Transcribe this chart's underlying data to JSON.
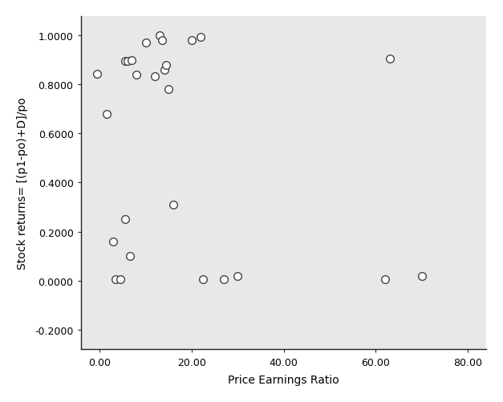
{
  "x": [
    -0.5,
    1.5,
    3.0,
    3.5,
    4.5,
    5.5,
    5.5,
    6.0,
    6.5,
    7.0,
    8.0,
    10.0,
    12.0,
    13.0,
    13.5,
    14.0,
    14.5,
    15.0,
    16.0,
    20.0,
    22.0,
    22.5,
    27.0,
    30.0,
    62.0,
    63.0,
    70.0
  ],
  "y": [
    0.845,
    0.68,
    0.16,
    0.005,
    0.005,
    0.25,
    0.895,
    0.895,
    0.1,
    0.9,
    0.84,
    0.97,
    0.835,
    1.0,
    0.98,
    0.86,
    0.88,
    0.78,
    0.31,
    0.98,
    0.995,
    0.005,
    0.005,
    0.02,
    0.005,
    0.905,
    0.02
  ],
  "xlabel": "Price Earnings Ratio",
  "ylabel": "Stock returns= [(p1-po)+D]/po",
  "xlim": [
    -4,
    84
  ],
  "ylim": [
    -0.28,
    1.08
  ],
  "xticks": [
    0,
    20,
    40,
    60,
    80
  ],
  "xtick_labels": [
    "0.00",
    "20.00",
    "40.00",
    "60.00",
    "80.00"
  ],
  "yticks": [
    -0.2,
    0.0,
    0.2,
    0.4,
    0.6,
    0.8,
    1.0
  ],
  "ytick_labels": [
    "-0.2000",
    "0.0000",
    "0.2000",
    "0.4000",
    "0.6000",
    "0.8000",
    "1.0000"
  ],
  "plot_bg_color": "#e8e8e8",
  "fig_bg_color": "#ffffff",
  "marker_facecolor": "white",
  "marker_edgecolor": "#444444",
  "marker_size": 7,
  "marker_linewidth": 1.0,
  "spine_color": "#222222",
  "tick_label_fontsize": 9,
  "axis_label_fontsize": 10
}
